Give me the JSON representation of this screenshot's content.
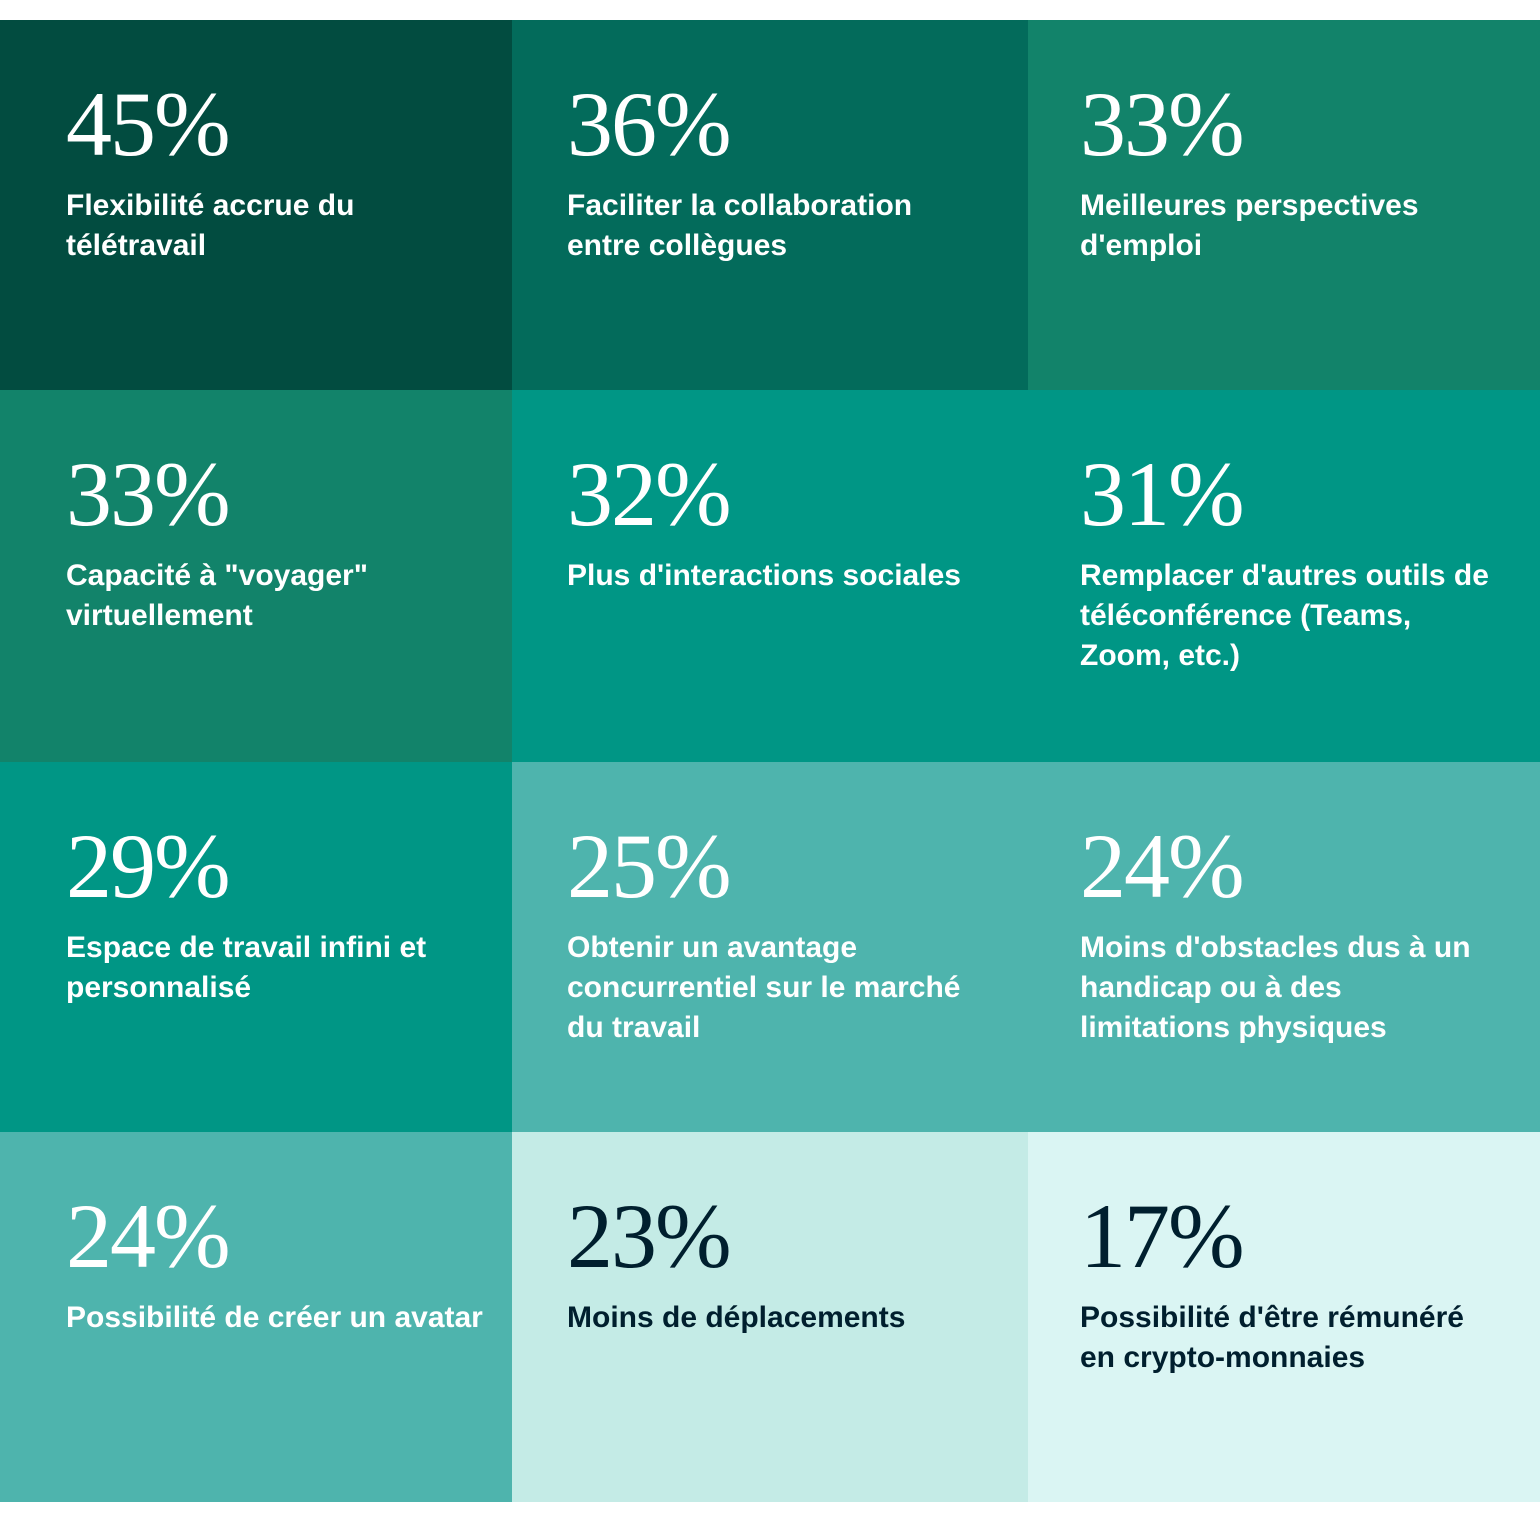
{
  "chart_data": {
    "type": "heatmap",
    "title": "",
    "grid": {
      "columns": 3,
      "rows": 4
    },
    "items": [
      {
        "value": 45,
        "value_label": "45%",
        "label": "Flexibilité accrue du télétravail",
        "bg": "#024c40",
        "fg": "#ffffff"
      },
      {
        "value": 36,
        "value_label": "36%",
        "label": "Faciliter la collaboration entre collègues",
        "bg": "#036b5b",
        "fg": "#ffffff"
      },
      {
        "value": 33,
        "value_label": "33%",
        "label": "Meilleures perspectives d'emploi",
        "bg": "#12836a",
        "fg": "#ffffff"
      },
      {
        "value": 33,
        "value_label": "33%",
        "label": "Capacité à \"voyager\" virtuellement",
        "bg": "#12836a",
        "fg": "#ffffff"
      },
      {
        "value": 32,
        "value_label": "32%",
        "label": "Plus d'interactions sociales",
        "bg": "#009685",
        "fg": "#ffffff"
      },
      {
        "value": 31,
        "value_label": "31%",
        "label": "Remplacer d'autres outils de téléconférence (Teams, Zoom, etc.)",
        "bg": "#009685",
        "fg": "#ffffff"
      },
      {
        "value": 29,
        "value_label": "29%",
        "label": "Espace de travail infini et personnalisé",
        "bg": "#009685",
        "fg": "#ffffff"
      },
      {
        "value": 25,
        "value_label": "25%",
        "label": "Obtenir un avantage concurrentiel sur le marché du travail",
        "bg": "#4eb4ad",
        "fg": "#ffffff"
      },
      {
        "value": 24,
        "value_label": "24%",
        "label": "Moins d'obstacles dus à un handicap ou à des limitations physiques",
        "bg": "#4eb4ad",
        "fg": "#ffffff"
      },
      {
        "value": 24,
        "value_label": "24%",
        "label": "Possibilité de créer un avatar",
        "bg": "#4eb4ad",
        "fg": "#ffffff"
      },
      {
        "value": 23,
        "value_label": "23%",
        "label": "Moins de déplacements",
        "bg": "#c4ebe6",
        "fg": "#001f2e"
      },
      {
        "value": 17,
        "value_label": "17%",
        "label": "Possibilité d'être rémunéré en crypto-monnaies",
        "bg": "#daf5f3",
        "fg": "#001f2e"
      }
    ]
  }
}
